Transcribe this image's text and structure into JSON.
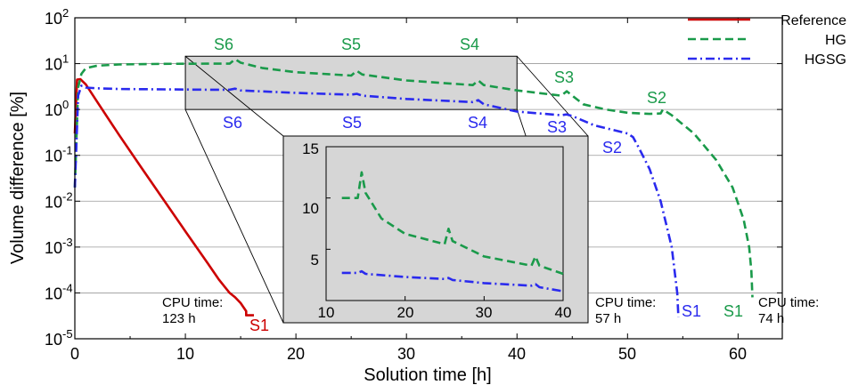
{
  "chart_data": {
    "type": "line",
    "xlabel": "Solution time [h]",
    "ylabel": "Volume difference [%]",
    "xlim": [
      0,
      64
    ],
    "ylim_exp": [
      -5,
      2
    ],
    "xticks": [
      "0",
      "10",
      "20",
      "30",
      "40",
      "50",
      "60"
    ],
    "yscale": "log",
    "grid": "horizontal",
    "legend_position": "top-right",
    "colors": {
      "reference": "#cc0000",
      "hg": "#1a9a4a",
      "hgsg": "#2a2aee"
    },
    "series": [
      {
        "name": "Reference",
        "style": "solid",
        "x": [
          0,
          0.2,
          0.5,
          1,
          2,
          4,
          6,
          8,
          10,
          12,
          13,
          14,
          14.5,
          15,
          15.5,
          15.5,
          16.2
        ],
        "y": [
          0.3,
          4.5,
          4.6,
          3.5,
          1.5,
          0.28,
          0.055,
          0.011,
          0.0022,
          0.00045,
          0.0002,
          0.0001,
          8e-05,
          6e-05,
          4e-05,
          3.25e-05,
          3.25e-05
        ]
      },
      {
        "name": "HG",
        "style": "dashed",
        "x": [
          0,
          0.3,
          0.6,
          1,
          2,
          4,
          8,
          12,
          14,
          14.5,
          15,
          17,
          20,
          25,
          25.5,
          26,
          30,
          36,
          36.5,
          37,
          40,
          44,
          44.5,
          45,
          46,
          48,
          50,
          52,
          53,
          53.2,
          54,
          56,
          58,
          59.5,
          60.5,
          61,
          61.2,
          61.3
        ],
        "y": [
          0.02,
          3,
          6,
          8,
          9,
          9.6,
          9.9,
          10,
          10,
          12.5,
          10.5,
          8,
          6.5,
          5.5,
          7,
          5.8,
          4.3,
          3.4,
          4.3,
          3.4,
          2.6,
          2,
          2.5,
          2,
          1.3,
          1,
          0.85,
          0.8,
          0.82,
          1,
          0.75,
          0.3,
          0.08,
          0.02,
          0.004,
          0.001,
          0.0003,
          8e-05
        ]
      },
      {
        "name": "HGSG",
        "style": "dashdot",
        "x": [
          0,
          0.3,
          0.6,
          1,
          2,
          4,
          8,
          12,
          14,
          14.5,
          15,
          20,
          25,
          25.5,
          26,
          30,
          36,
          36.5,
          37,
          40,
          44,
          44.5,
          45,
          47,
          50,
          50.5,
          51,
          52,
          53,
          54,
          54.5,
          54.6
        ],
        "y": [
          0.02,
          2,
          3.3,
          3,
          2.9,
          2.8,
          2.75,
          2.7,
          2.7,
          2.85,
          2.6,
          2.3,
          2.1,
          2.2,
          2.0,
          1.7,
          1.45,
          1.6,
          1.3,
          0.9,
          0.75,
          0.78,
          0.72,
          0.45,
          0.3,
          0.25,
          0.15,
          0.05,
          0.01,
          0.001,
          0.0001,
          3e-05
        ]
      }
    ],
    "inset": {
      "xlim": [
        10,
        40
      ],
      "ylim": [
        0,
        15
      ],
      "xticks": [
        "10",
        "20",
        "30",
        "40"
      ],
      "yticks": [
        "5",
        "10",
        "15"
      ]
    },
    "stage_labels": {
      "hg": [
        "S6",
        "S5",
        "S4",
        "S3",
        "S2",
        "S1"
      ],
      "hgsg": [
        "S6",
        "S5",
        "S4",
        "S3",
        "S2",
        "S1"
      ],
      "reference": [
        "S1"
      ]
    },
    "cpu_annotations": [
      {
        "line1": "CPU time:",
        "line2": "123 h"
      },
      {
        "line1": "CPU time:",
        "line2": "57 h"
      },
      {
        "line1": "CPU time:",
        "line2": "74 h"
      }
    ]
  }
}
